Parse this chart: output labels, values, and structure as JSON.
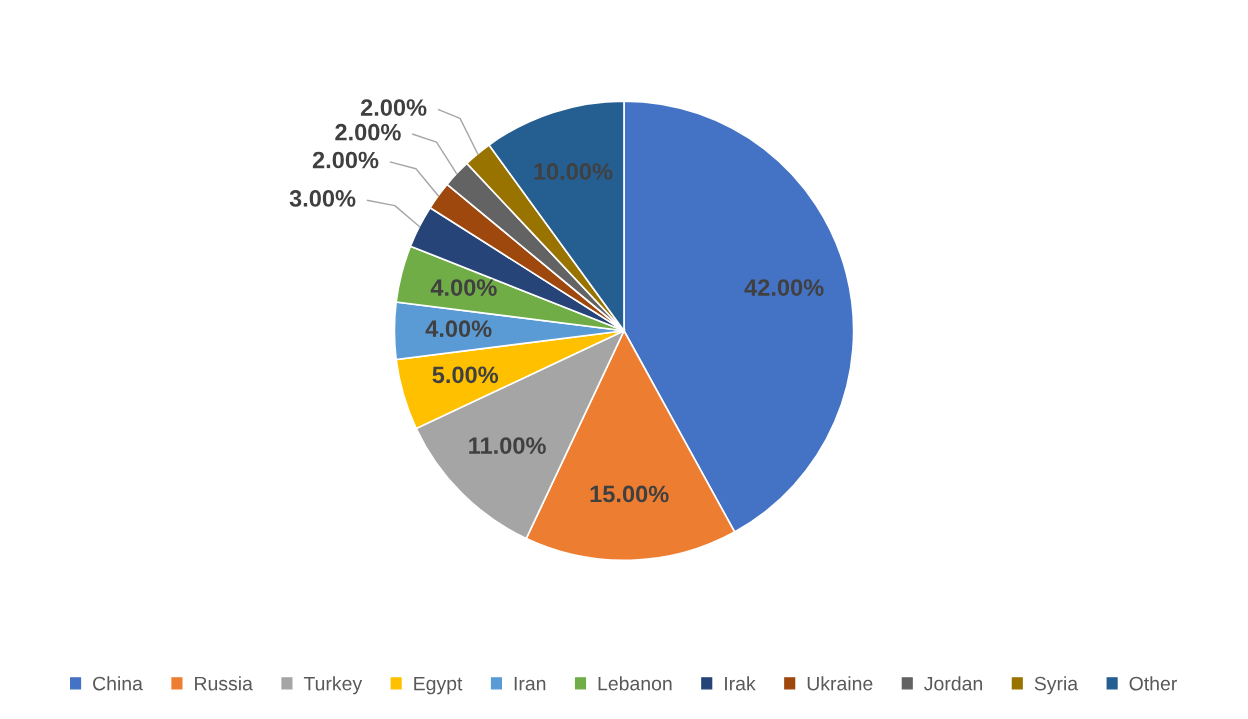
{
  "chart_data": {
    "type": "pie",
    "categories": [
      "China",
      "Russia",
      "Turkey",
      "Egypt",
      "Iran",
      "Lebanon",
      "Irak",
      "Ukraine",
      "Jordan",
      "Syria",
      "Other"
    ],
    "values": [
      42,
      15,
      11,
      5,
      4,
      4,
      3,
      2,
      2,
      2,
      10
    ],
    "colors": [
      "#4472c4",
      "#ed7d31",
      "#a5a5a5",
      "#ffc000",
      "#5b9bd5",
      "#70ad47",
      "#264478",
      "#9e480e",
      "#636363",
      "#997300",
      "#255e91"
    ],
    "value_labels": [
      "42.00%",
      "15.00%",
      "11.00%",
      "5.00%",
      "4.00%",
      "4.00%",
      "3.00%",
      "2.00%",
      "2.00%",
      "2.00%",
      "10.00%"
    ],
    "legend": "bottom"
  }
}
